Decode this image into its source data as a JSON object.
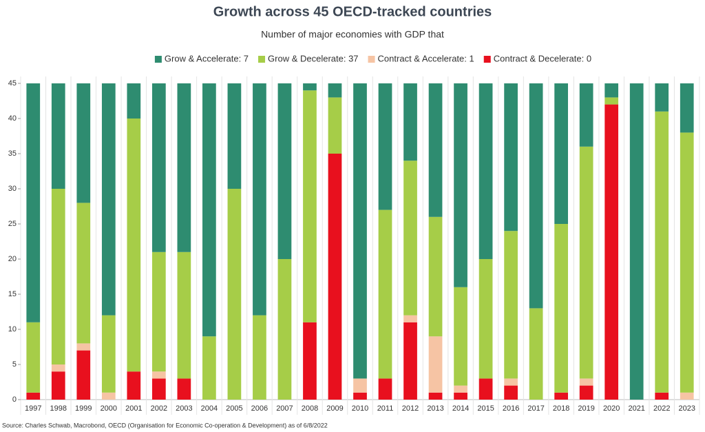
{
  "chart_data": {
    "type": "stacked-bar",
    "title": "Growth across 45 OECD-tracked countries",
    "subtitle": "Number of major economies with GDP that",
    "source": "Source: Charles Schwab, Macrobond, OECD (Organisation for Economic Co-operation & Development) as of 6/8/2022",
    "categories": [
      "1997",
      "1998",
      "1999",
      "2000",
      "2001",
      "2002",
      "2003",
      "2004",
      "2005",
      "2006",
      "2007",
      "2008",
      "2009",
      "2010",
      "2011",
      "2012",
      "2013",
      "2014",
      "2015",
      "2016",
      "2017",
      "2018",
      "2019",
      "2020",
      "2021",
      "2022",
      "2023"
    ],
    "series": [
      {
        "name": "Grow & Accelerate: 7",
        "color": "#2e8c70",
        "values": [
          34,
          15,
          17,
          33,
          5,
          24,
          24,
          36,
          15,
          33,
          25,
          1,
          2,
          42,
          18,
          11,
          19,
          29,
          25,
          21,
          32,
          20,
          9,
          2,
          45,
          4,
          7
        ]
      },
      {
        "name": "Grow & Decelerate: 37",
        "color": "#a6cd48",
        "values": [
          10,
          25,
          20,
          11,
          36,
          17,
          18,
          9,
          30,
          12,
          20,
          33,
          8,
          0,
          24,
          22,
          17,
          14,
          17,
          21,
          13,
          24,
          33,
          1,
          0,
          40,
          37
        ]
      },
      {
        "name": "Contract & Accelerate: 1",
        "color": "#f6c4a4",
        "values": [
          0,
          1,
          1,
          1,
          0,
          1,
          0,
          0,
          0,
          0,
          0,
          0,
          0,
          2,
          0,
          1,
          8,
          1,
          0,
          1,
          0,
          0,
          1,
          0,
          0,
          0,
          1
        ]
      },
      {
        "name": "Contract & Decelerate: 0",
        "color": "#e8101e",
        "values": [
          1,
          4,
          7,
          0,
          4,
          3,
          3,
          0,
          0,
          0,
          0,
          11,
          35,
          1,
          3,
          11,
          1,
          1,
          3,
          2,
          0,
          1,
          2,
          42,
          0,
          1,
          0
        ]
      }
    ],
    "ylim": [
      0,
      45
    ],
    "yticks": [
      0,
      5,
      10,
      15,
      20,
      25,
      30,
      35,
      40,
      45
    ]
  }
}
